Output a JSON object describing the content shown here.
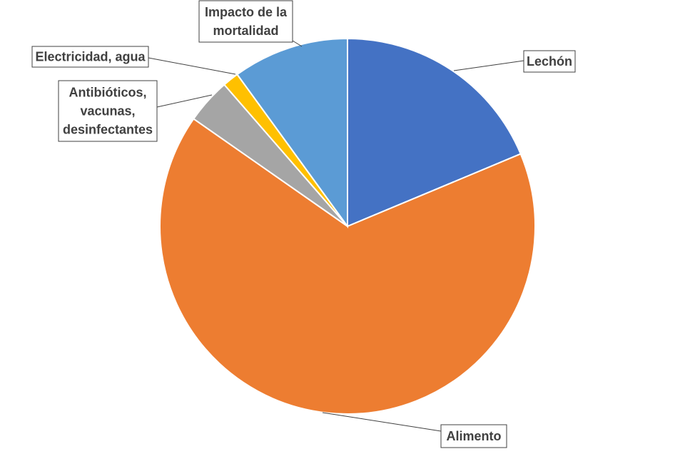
{
  "chart_data": {
    "type": "pie",
    "title": "",
    "start_angle_deg": 0,
    "direction": "clockwise",
    "legend": "none",
    "slices": [
      {
        "label": "Lechón",
        "value": 18.7,
        "color": "#4472C4"
      },
      {
        "label": "Alimento",
        "value": 66.0,
        "color": "#ED7D31"
      },
      {
        "label": "Antibióticos, vacunas, desinfectantes",
        "value": 3.9,
        "color": "#A5A5A5"
      },
      {
        "label": "Electricidad, agua",
        "value": 1.4,
        "color": "#FFC000"
      },
      {
        "label": "Impacto de la mortalidad",
        "value": 10.0,
        "color": "#5B9BD5"
      }
    ]
  }
}
